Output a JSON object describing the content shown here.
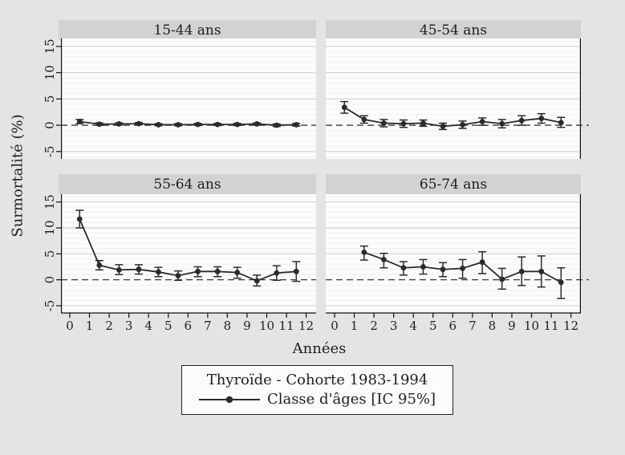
{
  "chart_data": {
    "type": "line",
    "title": "",
    "xlabel": "Années",
    "ylabel": "Surmortalité (%)",
    "legend_title": "Thyroïde - Cohorte 1983-1994",
    "legend_series": "Classe d'âges [IC 95%]",
    "legend_position": "bottom",
    "grid": true,
    "zero_line": "dashed",
    "ylim": [
      -6.4,
      16.5
    ],
    "yticks": [
      -5,
      0,
      5,
      10,
      15
    ],
    "xticks": [
      0,
      1,
      2,
      3,
      4,
      5,
      6,
      7,
      8,
      9,
      10,
      11,
      12
    ],
    "xlim": [
      -0.45,
      12.5
    ],
    "error_bars": "IC 95%",
    "colors": {
      "background": "#e4e4e4",
      "panel_band": "#d2d2d2",
      "plot_background": "#fcfcfc",
      "major_grid": "#d0d0d0",
      "minor_grid": "#efefef",
      "series": "#2b2b2b",
      "axis": "#111111"
    },
    "panels": [
      {
        "title": "15-44 ans",
        "axis_side": "left",
        "x": [
          0.5,
          1.5,
          2.5,
          3.5,
          4.5,
          5.5,
          6.5,
          7.5,
          8.5,
          9.5,
          10.5,
          11.5
        ],
        "y": [
          0.7,
          0.2,
          0.25,
          0.3,
          0.1,
          0.1,
          0.15,
          0.15,
          0.15,
          0.25,
          0.0,
          0.1
        ],
        "ci_low": [
          0.3,
          0.0,
          0.05,
          0.1,
          -0.1,
          -0.1,
          -0.05,
          -0.05,
          -0.05,
          0.05,
          -0.25,
          -0.15
        ],
        "ci_high": [
          1.1,
          0.45,
          0.45,
          0.5,
          0.3,
          0.3,
          0.35,
          0.35,
          0.35,
          0.45,
          0.25,
          0.35
        ]
      },
      {
        "title": "45-54 ans",
        "axis_side": "right",
        "x": [
          0.5,
          1.5,
          2.5,
          3.5,
          4.5,
          5.5,
          6.5,
          7.5,
          8.5,
          9.5,
          10.5,
          11.5
        ],
        "y": [
          3.4,
          1.1,
          0.4,
          0.3,
          0.4,
          -0.2,
          0.1,
          0.7,
          0.3,
          0.9,
          1.3,
          0.5
        ],
        "ci_low": [
          2.3,
          0.4,
          -0.3,
          -0.4,
          -0.2,
          -0.8,
          -0.6,
          0.0,
          -0.5,
          0.0,
          0.4,
          -0.4
        ],
        "ci_high": [
          4.5,
          1.8,
          1.1,
          1.0,
          1.0,
          0.4,
          0.8,
          1.4,
          1.1,
          1.8,
          2.2,
          1.5
        ]
      },
      {
        "title": "55-64 ans",
        "axis_side": "left",
        "x": [
          0.5,
          1.5,
          2.5,
          3.5,
          4.5,
          5.5,
          6.5,
          7.5,
          8.5,
          9.5,
          10.5,
          11.5
        ],
        "y": [
          11.7,
          2.8,
          1.9,
          2.0,
          1.5,
          0.8,
          1.6,
          1.6,
          1.4,
          -0.2,
          1.3,
          1.6
        ],
        "ci_low": [
          10.0,
          1.9,
          1.0,
          1.1,
          0.6,
          -0.1,
          0.6,
          0.6,
          0.3,
          -1.2,
          -0.1,
          -0.3
        ],
        "ci_high": [
          13.4,
          3.7,
          2.9,
          2.9,
          2.4,
          1.7,
          2.5,
          2.5,
          2.4,
          0.9,
          2.7,
          3.5
        ]
      },
      {
        "title": "65-74 ans",
        "axis_side": "right",
        "x": [
          1.5,
          2.5,
          3.5,
          4.5,
          5.5,
          6.5,
          7.5,
          8.5,
          9.5,
          10.5,
          11.5
        ],
        "y": [
          5.3,
          3.9,
          2.3,
          2.5,
          2.0,
          2.2,
          3.4,
          0.1,
          1.6,
          1.6,
          -0.5
        ],
        "ci_low": [
          3.8,
          2.3,
          0.9,
          1.1,
          0.6,
          0.3,
          1.2,
          -1.8,
          -1.1,
          -1.4,
          -3.6
        ],
        "ci_high": [
          6.5,
          5.1,
          3.5,
          3.9,
          3.3,
          3.9,
          5.4,
          2.2,
          4.4,
          4.6,
          2.3
        ]
      }
    ]
  }
}
